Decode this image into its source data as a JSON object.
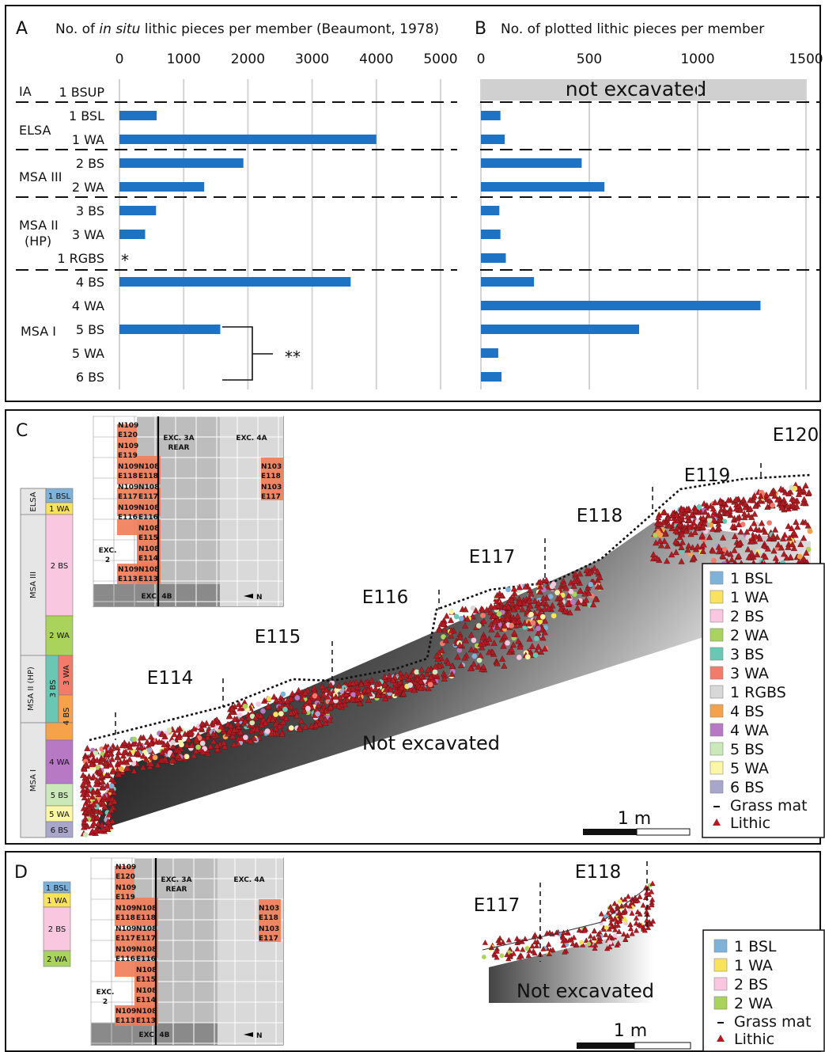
{
  "panelA": {
    "letter": "A",
    "title_pre": "No. of ",
    "title_em": "in situ",
    "title_post": " lithic pieces per member (Beaumont, 1978)",
    "note_rgbs": "*",
    "note_bracket": "**"
  },
  "panelB": {
    "letter": "B",
    "title": "No. of plotted lithic pieces per member",
    "not_excavated": "not excavated"
  },
  "groups": [
    {
      "label": "IA",
      "lines": [
        "IA"
      ]
    },
    {
      "label": "ELSA",
      "lines": [
        "ELSA"
      ]
    },
    {
      "label": "MSA III",
      "lines": [
        "MSA III"
      ]
    },
    {
      "label": "MSA II (HP)",
      "lines": [
        "MSA II",
        "(HP)"
      ]
    },
    {
      "label": "MSA I",
      "lines": [
        "MSA I"
      ]
    }
  ],
  "chart_data": [
    {
      "type": "bar",
      "orientation": "horizontal",
      "title": "No. of in situ lithic pieces per member (Beaumont, 1978)",
      "categories": [
        "1 BSUP",
        "1 BSL",
        "1 WA",
        "2 BS",
        "2 WA",
        "3 BS",
        "3 WA",
        "1 RGBS",
        "4 BS",
        "4 WA",
        "5 BS",
        "5 WA",
        "6 BS"
      ],
      "values": [
        null,
        580,
        4000,
        1930,
        1320,
        570,
        400,
        null,
        3600,
        null,
        1570,
        null,
        null
      ],
      "xlim": [
        0,
        5000
      ],
      "xticks": [
        "0",
        "1000",
        "2000",
        "3000",
        "4000",
        "5000"
      ],
      "grid": true,
      "color": "#1f73c4"
    },
    {
      "type": "bar",
      "orientation": "horizontal",
      "title": "No. of plotted lithic pieces per member",
      "categories": [
        "1 BSUP",
        "1 BSL",
        "1 WA",
        "2 BS",
        "2 WA",
        "3 BS",
        "3 WA",
        "1 RGBS",
        "4 BS",
        "4 WA",
        "5 BS",
        "5 WA",
        "6 BS"
      ],
      "values": [
        null,
        90,
        110,
        465,
        570,
        85,
        90,
        115,
        245,
        1290,
        730,
        80,
        95
      ],
      "xlim": [
        0,
        1500
      ],
      "xticks": [
        "0",
        "500",
        "1000",
        "1500"
      ],
      "grid": true,
      "color": "#1f73c4"
    }
  ],
  "panelC": {
    "letter": "C",
    "sections": [
      "E114",
      "E115",
      "E116",
      "E117",
      "E118",
      "E119",
      "E120"
    ],
    "not_excavated": "Not excavated",
    "scale": "1 m",
    "strat_groups": [
      "ELSA",
      "MSA III",
      "MSA II (HP)",
      "MSA I"
    ],
    "strat_units": [
      "1 BSL",
      "1 WA",
      "2 BS",
      "2 WA",
      "3 BS",
      "3 WA",
      "4 BS",
      "4 WA",
      "5 BS",
      "5 WA",
      "6 BS"
    ],
    "legend": [
      {
        "label": "1 BSL",
        "color": "#7fb2d9"
      },
      {
        "label": "1 WA",
        "color": "#f9e35c"
      },
      {
        "label": "2 BS",
        "color": "#f9c8e0"
      },
      {
        "label": "2 WA",
        "color": "#a9d35a"
      },
      {
        "label": "3 BS",
        "color": "#69c7b4"
      },
      {
        "label": "3 WA",
        "color": "#f47a6b"
      },
      {
        "label": "1 RGBS",
        "color": "#d8d8d8"
      },
      {
        "label": "4 BS",
        "color": "#f6a24a"
      },
      {
        "label": "4 WA",
        "color": "#b779c3"
      },
      {
        "label": "5 BS",
        "color": "#cbe9b8"
      },
      {
        "label": "5 WA",
        "color": "#fbf7a8"
      },
      {
        "label": "6 BS",
        "color": "#a9a6cb"
      }
    ],
    "legend_grass": "Grass mat",
    "legend_lithic": "Lithic"
  },
  "panelD": {
    "letter": "D",
    "sections": [
      "E117",
      "E118"
    ],
    "not_excavated": "Not excavated",
    "scale": "1 m",
    "strat_units": [
      "1 BSL",
      "1 WA",
      "2 BS",
      "2 WA"
    ],
    "legend": [
      {
        "label": "1 BSL",
        "color": "#7fb2d9"
      },
      {
        "label": "1 WA",
        "color": "#f9e35c"
      },
      {
        "label": "2 BS",
        "color": "#f9c8e0"
      },
      {
        "label": "2 WA",
        "color": "#a9d35a"
      }
    ],
    "legend_grass": "Grass mat",
    "legend_lithic": "Lithic"
  },
  "map": {
    "exc3a": "EXC. 3A",
    "rear": "REAR",
    "exc4a": "EXC. 4A",
    "exc2": "EXC.",
    "exc2n": "2",
    "exc4b": "EXC. 4B",
    "north": "N",
    "sq": [
      "N109",
      "E120",
      "N109",
      "E119",
      "N109",
      "N108",
      "E118",
      "E118",
      "N109",
      "N108",
      "E117",
      "E117",
      "N109",
      "N108",
      "E116",
      "E116",
      "N108",
      "E115",
      "N108",
      "E114",
      "N109",
      "N108",
      "E113",
      "E113",
      "N103",
      "E118",
      "N103",
      "E117"
    ]
  }
}
